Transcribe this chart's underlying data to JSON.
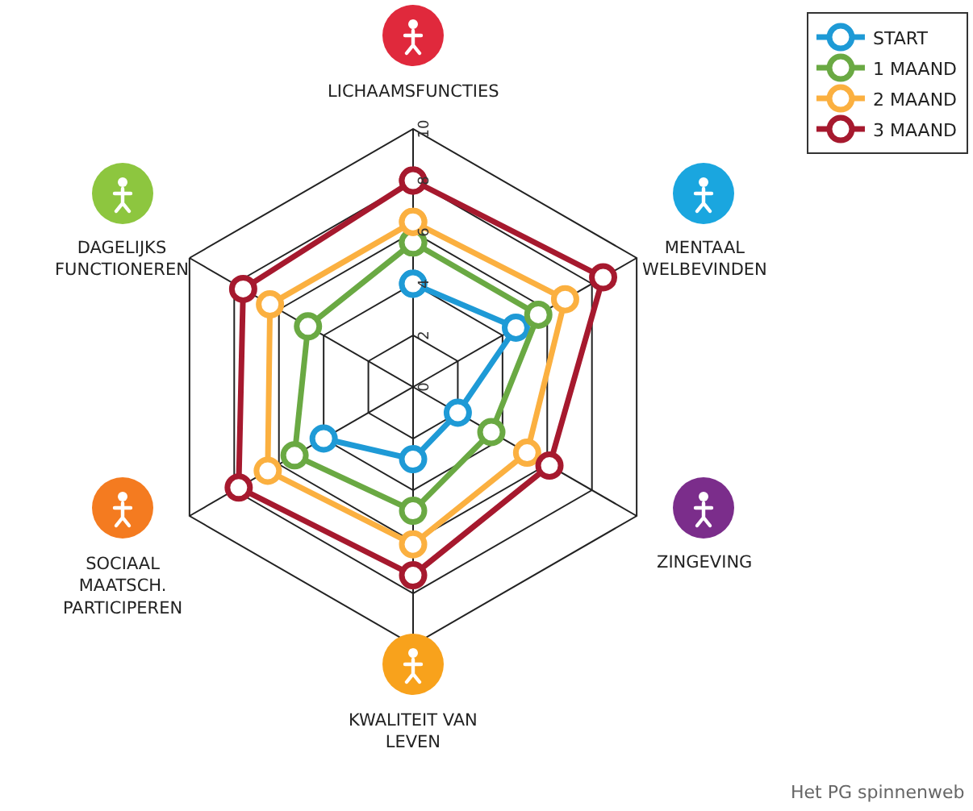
{
  "chart_data": {
    "type": "radar",
    "categories": [
      "LICHAAMSFUNCTIES",
      "MENTAAL WELBEVINDEN",
      "ZINGEVING",
      "KWALITEIT VAN LEVEN",
      "SOCIAAL MAATSCH. PARTICIPEREN",
      "DAGELIJKS FUNCTIONEREN"
    ],
    "series": [
      {
        "name": "START",
        "color": "#1e9ad6",
        "values": [
          4,
          4.6,
          2,
          2.8,
          4,
          null
        ]
      },
      {
        "name": "1 MAAND",
        "color": "#6aa943",
        "values": [
          5.6,
          5.6,
          3.5,
          4.8,
          5.3,
          4.7
        ]
      },
      {
        "name": "2 MAAND",
        "color": "#fbb040",
        "values": [
          6.4,
          6.8,
          5.1,
          6.1,
          6.5,
          6.4
        ]
      },
      {
        "name": "3 MAAND",
        "color": "#a6192e",
        "values": [
          8,
          8.5,
          6.1,
          7.3,
          7.8,
          7.6
        ]
      }
    ],
    "ylim": [
      0,
      10
    ],
    "yticks": [
      0,
      2,
      4,
      6,
      8,
      10
    ],
    "grid": true,
    "legend": "top right",
    "marker": "circle",
    "line_style": "solid",
    "annotations": [
      "Het PG spinnenweb"
    ]
  }
}
